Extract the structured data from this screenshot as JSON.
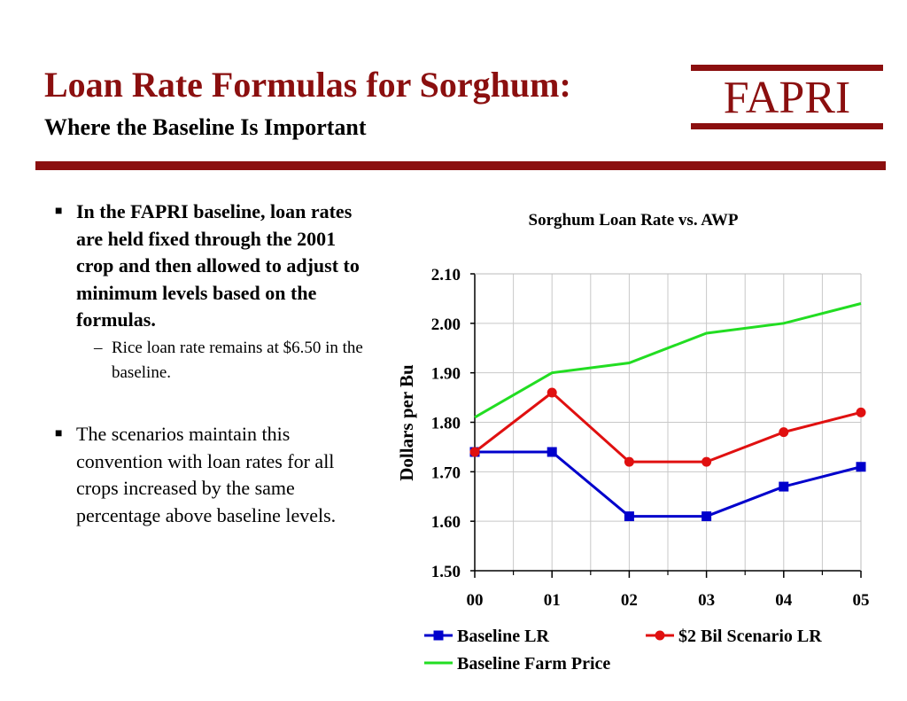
{
  "header": {
    "title": "Loan Rate Formulas for Sorghum:",
    "subtitle": "Where the Baseline Is Important",
    "logo": "FAPRI",
    "accent_color": "#8b0f0f"
  },
  "bullets": [
    {
      "text": "In the FAPRI baseline, loan rates are held fixed through the 2001 crop and then allowed to adjust to minimum levels based on the formulas.",
      "sub": "Rice loan rate remains at $6.50 in the baseline."
    },
    {
      "text": "The scenarios maintain this convention with loan rates for all crops increased by the same percentage above baseline levels."
    }
  ],
  "chart_data": {
    "type": "line",
    "title": "Sorghum Loan Rate vs. AWP",
    "xlabel": "",
    "ylabel": "Dollars per Bu",
    "categories": [
      "00",
      "01",
      "02",
      "03",
      "04",
      "05"
    ],
    "ylim": [
      1.5,
      2.1
    ],
    "yticks": [
      "1.50",
      "1.60",
      "1.70",
      "1.80",
      "1.90",
      "2.00",
      "2.10"
    ],
    "grid": true,
    "legend_position": "bottom",
    "series": [
      {
        "name": "Baseline LR",
        "values": [
          1.74,
          1.74,
          1.61,
          1.61,
          1.67,
          1.71
        ],
        "color": "#0000cc",
        "marker": "square"
      },
      {
        "name": "$2 Bil Scenario LR",
        "values": [
          1.74,
          1.86,
          1.72,
          1.72,
          1.78,
          1.82
        ],
        "color": "#e01010",
        "marker": "circle"
      },
      {
        "name": "Baseline Farm Price",
        "values": [
          1.81,
          1.9,
          1.92,
          1.98,
          2.0,
          2.04
        ],
        "color": "#22dd22",
        "marker": "none"
      }
    ]
  }
}
